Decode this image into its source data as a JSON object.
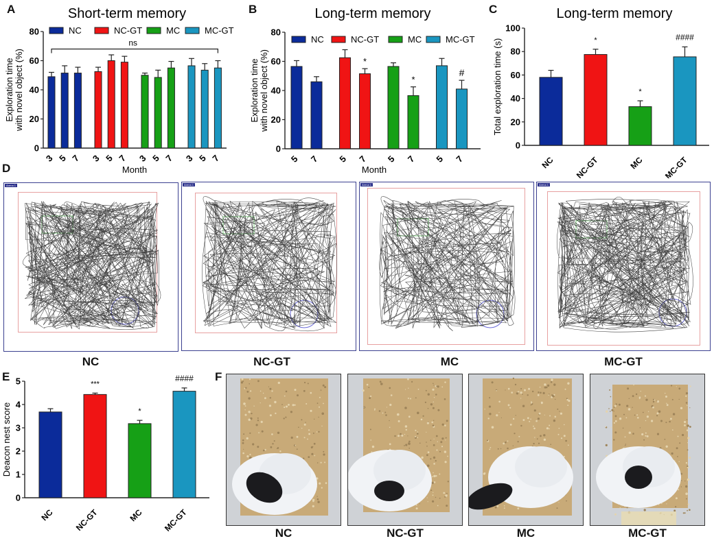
{
  "panels": {
    "A": "A",
    "B": "B",
    "C": "C",
    "D": "D",
    "E": "E",
    "F": "F"
  },
  "colors": {
    "NC": "#0b2b9a",
    "NC-GT": "#f01414",
    "MC": "#16a016",
    "MC-GT": "#1a96c0"
  },
  "chart_data": [
    {
      "id": "A",
      "type": "bar",
      "title": "Short-term memory",
      "xlabel": "Month",
      "ylabel": "Exploration time with novel object (%)",
      "ylabel_lines": [
        "Exploration time",
        "with novel object (%)"
      ],
      "ylim": [
        0,
        80
      ],
      "yticks": [
        0,
        20,
        40,
        60,
        80
      ],
      "legend": [
        "NC",
        "NC-GT",
        "MC",
        "MC-GT"
      ],
      "legend_placement": "top",
      "groups": [
        {
          "name": "NC",
          "categories": [
            "3",
            "5",
            "7"
          ],
          "values": [
            49,
            51.5,
            51.5
          ],
          "errors": [
            3,
            5,
            4
          ]
        },
        {
          "name": "NC-GT",
          "categories": [
            "3",
            "5",
            "7"
          ],
          "values": [
            52.5,
            60,
            59
          ],
          "errors": [
            3,
            4,
            4
          ]
        },
        {
          "name": "MC",
          "categories": [
            "3",
            "5",
            "7"
          ],
          "values": [
            50,
            48.5,
            55
          ],
          "errors": [
            1.5,
            5,
            4.5
          ]
        },
        {
          "name": "MC-GT",
          "categories": [
            "3",
            "5",
            "7"
          ],
          "values": [
            56.5,
            53.5,
            55
          ],
          "errors": [
            5,
            4.5,
            5
          ]
        }
      ],
      "annotations": [
        {
          "text": "ns",
          "type": "bracket",
          "from": "NC-3",
          "to": "MC-GT-7",
          "y": 68
        }
      ]
    },
    {
      "id": "B",
      "type": "bar",
      "title": "Long-term memory",
      "xlabel": "Month",
      "ylabel": "Exploration time with novel object (%)",
      "ylabel_lines": [
        "Exploration time",
        "with novel object (%)"
      ],
      "ylim": [
        0,
        80
      ],
      "yticks": [
        0,
        20,
        40,
        60,
        80
      ],
      "legend": [
        "NC",
        "NC-GT",
        "MC",
        "MC-GT"
      ],
      "legend_placement": "top",
      "groups": [
        {
          "name": "NC",
          "categories": [
            "5",
            "7"
          ],
          "values": [
            56.5,
            46
          ],
          "errors": [
            4,
            3.5
          ],
          "marks": [
            "",
            ""
          ]
        },
        {
          "name": "NC-GT",
          "categories": [
            "5",
            "7"
          ],
          "values": [
            62.5,
            51.5
          ],
          "errors": [
            5.5,
            3.5
          ],
          "marks": [
            "",
            "*"
          ]
        },
        {
          "name": "MC",
          "categories": [
            "5",
            "7"
          ],
          "values": [
            56.5,
            36.5
          ],
          "errors": [
            2.5,
            6
          ],
          "marks": [
            "",
            "*"
          ]
        },
        {
          "name": "MC-GT",
          "categories": [
            "5",
            "7"
          ],
          "values": [
            57,
            41
          ],
          "errors": [
            5,
            6
          ],
          "marks": [
            "",
            "#"
          ]
        }
      ]
    },
    {
      "id": "C",
      "type": "bar",
      "title": "Long-term memory",
      "xlabel": "",
      "ylabel": "Total exploration time (s)",
      "ylim": [
        0,
        100
      ],
      "yticks": [
        0,
        20,
        40,
        60,
        80,
        100
      ],
      "categories": [
        "NC",
        "NC-GT",
        "MC",
        "MC-GT"
      ],
      "values": [
        58,
        77.5,
        33,
        75.5
      ],
      "errors": [
        6,
        4.5,
        5,
        8.5
      ],
      "marks": [
        "",
        "*",
        "*",
        "####"
      ]
    },
    {
      "id": "E",
      "type": "bar",
      "title": "",
      "xlabel": "",
      "ylabel": "Deacon nest score",
      "ylim": [
        0,
        5
      ],
      "yticks": [
        0,
        1,
        2,
        3,
        4,
        5
      ],
      "categories": [
        "NC",
        "NC-GT",
        "MC",
        "MC-GT"
      ],
      "values": [
        3.68,
        4.43,
        3.18,
        4.57
      ],
      "errors": [
        0.14,
        0.06,
        0.14,
        0.14
      ],
      "marks": [
        "",
        "***",
        "*",
        "####"
      ]
    }
  ],
  "arenas": {
    "tag": "Arena 1",
    "labels": [
      "NC",
      "NC-GT",
      "MC",
      "MC-GT"
    ]
  },
  "photos": {
    "labels": [
      "NC",
      "NC-GT",
      "MC",
      "MC-GT"
    ]
  }
}
